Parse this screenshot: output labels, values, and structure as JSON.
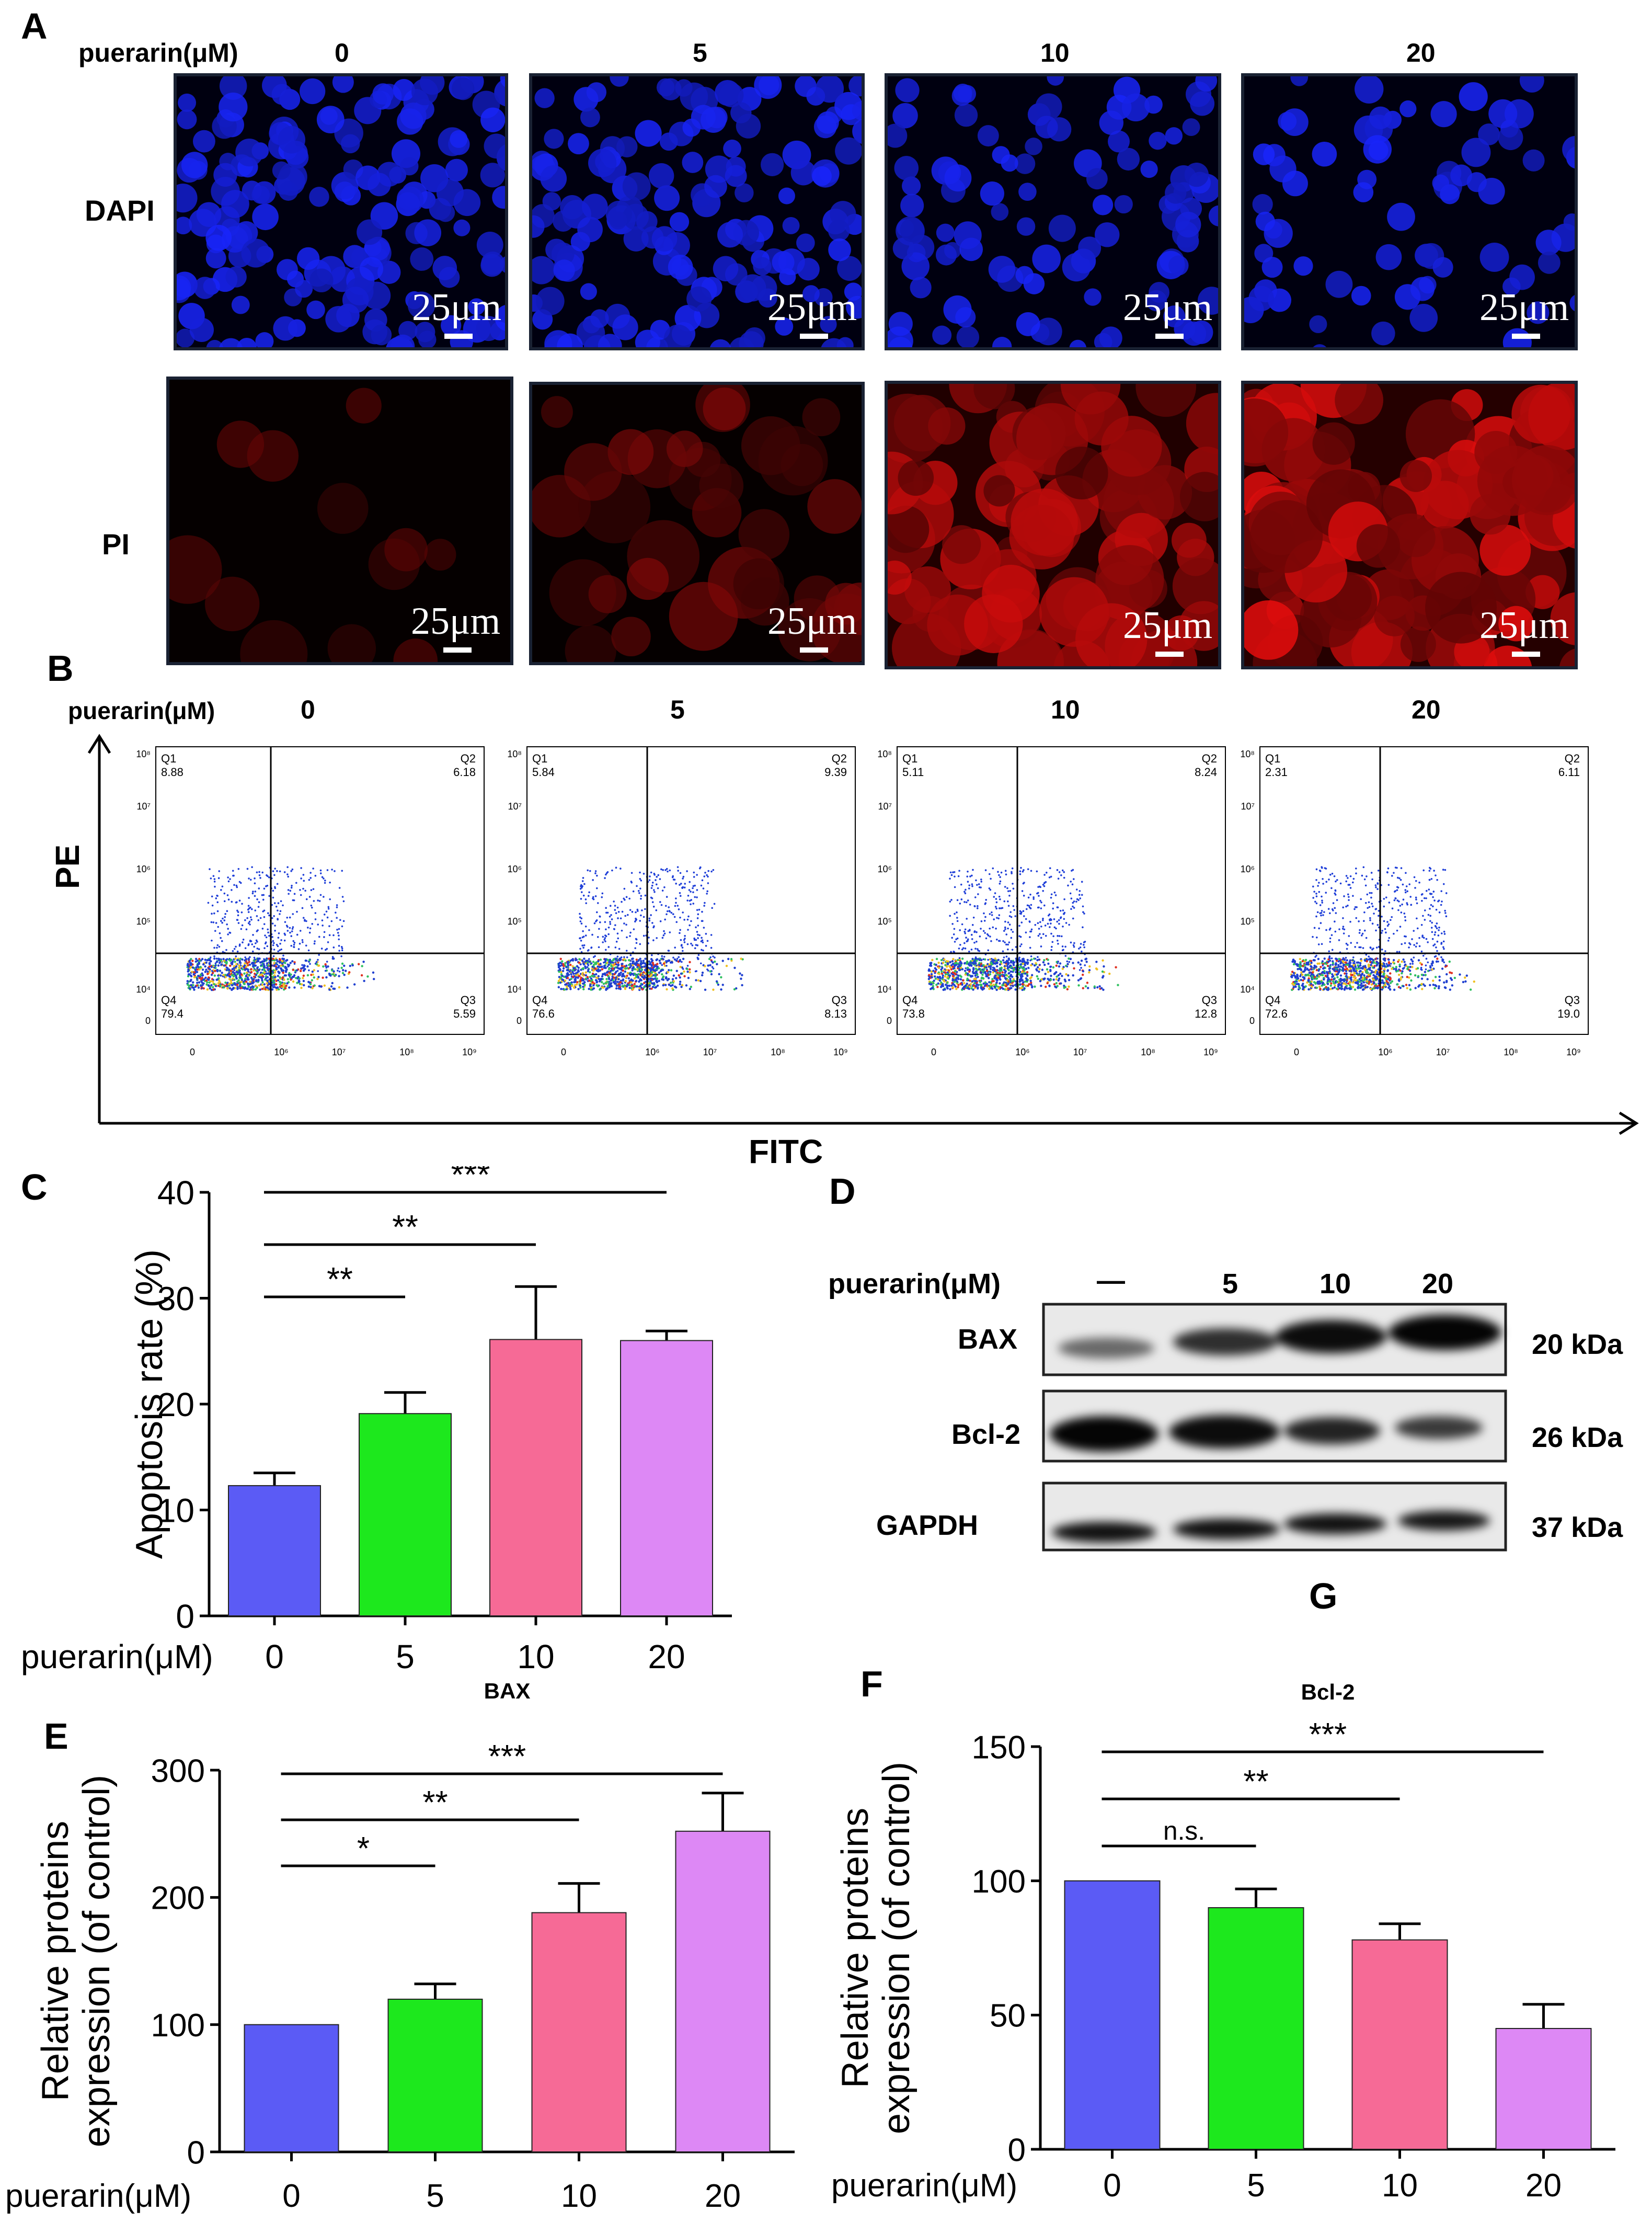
{
  "panels": {
    "A": "A",
    "B": "B",
    "C": "C",
    "D": "D",
    "E": "E",
    "F": "F",
    "G": "G"
  },
  "treatment_label": "puerarin(μM)",
  "doses": [
    "0",
    "5",
    "10",
    "20"
  ],
  "panelA": {
    "row_labels": [
      "DAPI",
      "PI"
    ],
    "scale_text": "25μm",
    "colors": {
      "dapi": "#1c2cf0",
      "pi": "#d01010"
    }
  },
  "panelB": {
    "y_axis": "PE",
    "x_axis": "FITC",
    "y_ticks": [
      "10⁸",
      "10⁷",
      "10⁶",
      "10⁵",
      "10⁴",
      "0"
    ],
    "x_ticks": [
      "0",
      "10⁶",
      "10⁷",
      "10⁸",
      "10⁹"
    ],
    "quadrant_names": [
      "Q1",
      "Q2",
      "Q3",
      "Q4"
    ],
    "plots": [
      {
        "Q1": "8.88",
        "Q2": "6.18",
        "Q3": "5.59",
        "Q4": "79.4"
      },
      {
        "Q1": "5.84",
        "Q2": "9.39",
        "Q3": "8.13",
        "Q4": "76.6"
      },
      {
        "Q1": "5.11",
        "Q2": "8.24",
        "Q3": "12.8",
        "Q4": "73.8"
      },
      {
        "Q1": "2.31",
        "Q2": "6.11",
        "Q3": "19.0",
        "Q4": "72.6"
      }
    ]
  },
  "panelD": {
    "first_lane": "—",
    "proteins": [
      {
        "name": "BAX",
        "kda": "20 kDa"
      },
      {
        "name": "Bcl-2",
        "kda": "26 kDa"
      },
      {
        "name": "GAPDH",
        "kda": "37 kDa"
      }
    ]
  },
  "chart_data": [
    {
      "type": "bar",
      "panel": "C",
      "categories": [
        "0",
        "5",
        "10",
        "20"
      ],
      "values": [
        12.3,
        19.1,
        26.1,
        26.0
      ],
      "errors": [
        1.2,
        2.0,
        5.0,
        0.9
      ],
      "ylabel": "Apoptosis rate (%)",
      "xlabel": "puerarin(μM)",
      "ylim": [
        0,
        40
      ],
      "yticks": [
        "0",
        "10",
        "20",
        "30",
        "40"
      ],
      "colors": [
        "#5b5bf5",
        "#1de81d",
        "#f66a96",
        "#dd88f5"
      ],
      "significance": [
        "**",
        "**",
        "***"
      ]
    },
    {
      "type": "bar",
      "panel": "E",
      "title": "BAX",
      "categories": [
        "0",
        "5",
        "10",
        "20"
      ],
      "values": [
        100,
        120,
        188,
        252
      ],
      "errors": [
        0,
        12,
        23,
        30
      ],
      "ylabel": "Relative proteins expression (of control)",
      "xlabel": "puerarin(μM)",
      "ylim": [
        0,
        300
      ],
      "yticks": [
        "0",
        "100",
        "200",
        "300"
      ],
      "colors": [
        "#5b5bf5",
        "#1de81d",
        "#f66a96",
        "#dd88f5"
      ],
      "significance": [
        "*",
        "**",
        "***"
      ]
    },
    {
      "type": "bar",
      "panel": "F",
      "title": "Bcl-2",
      "categories": [
        "0",
        "5",
        "10",
        "20"
      ],
      "values": [
        100,
        90,
        78,
        45
      ],
      "errors": [
        0,
        7,
        6,
        9
      ],
      "ylabel": "Relative proteins expression (of control)",
      "xlabel": "puerarin(μM)",
      "ylim": [
        0,
        150
      ],
      "yticks": [
        "0",
        "50",
        "100",
        "150"
      ],
      "colors": [
        "#5b5bf5",
        "#1de81d",
        "#f66a96",
        "#dd88f5"
      ],
      "significance": [
        "n.s.",
        "**",
        "***"
      ]
    }
  ]
}
